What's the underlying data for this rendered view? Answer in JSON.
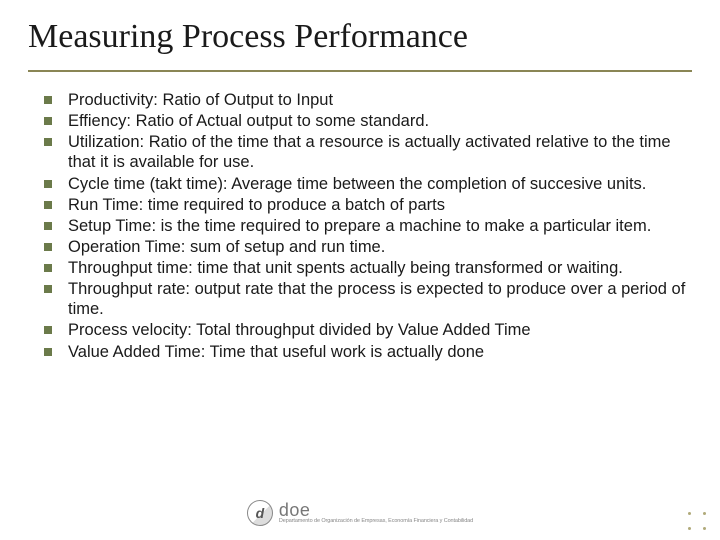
{
  "title": "Measuring Process Performance",
  "bullets": [
    "Productivity: Ratio of Output to Input",
    "Effiency: Ratio of Actual output to some standard.",
    "Utilization: Ratio of the time that a resource is actually activated relative to the time that it is available for use.",
    "Cycle time (takt time): Average time between the completion of succesive units.",
    "Run Time: time required to produce a batch of parts",
    "Setup Time: is the time required to prepare a machine to make a particular item.",
    "Operation Time: sum of setup and run time.",
    "Throughput time: time that unit spents actually being transformed or waiting.",
    "Throughput rate: output rate that the process is expected to produce over a period of time.",
    "Process velocity: Total throughput divided by Value Added Time",
    "Value Added Time: Time that useful work is actually done"
  ],
  "logo": {
    "mark": "d",
    "main": "doe",
    "sub": "Departamento de Organización de Empresas, Economía Financiera y Contabilidad"
  },
  "colors": {
    "rule": "#8a8655",
    "bullet": "#6b7a4a",
    "text": "#1a1a1a"
  }
}
